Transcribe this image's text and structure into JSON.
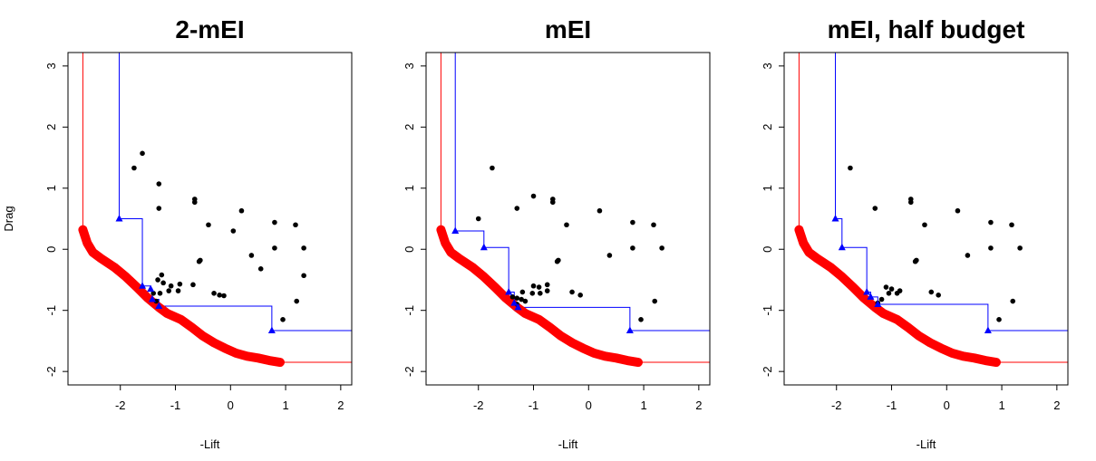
{
  "chart_data": [
    {
      "type": "scatter",
      "title": "2-mEI",
      "xlabel": "-Lift",
      "ylabel": "Drag",
      "xlim": [
        -2.95,
        2.2
      ],
      "ylim": [
        -2.22,
        3.22
      ],
      "xticks": [
        -2,
        -1,
        0,
        1,
        2
      ],
      "yticks": [
        -2,
        -1,
        0,
        1,
        2,
        3
      ],
      "colors": {
        "front": "#ff0000",
        "estimate": "#0000ff",
        "points": "#000000"
      },
      "series": [
        {
          "values": [
            [
              -1.75,
              1.33
            ],
            [
              -1.6,
              1.57
            ],
            [
              -1.3,
              1.07
            ],
            [
              -1.3,
              0.67
            ],
            [
              -0.65,
              0.82
            ],
            [
              -0.65,
              0.77
            ],
            [
              -0.4,
              0.4
            ],
            [
              0.2,
              0.63
            ],
            [
              -0.55,
              -0.18
            ],
            [
              -0.57,
              -0.2
            ],
            [
              0.05,
              0.3
            ],
            [
              0.8,
              0.44
            ],
            [
              1.18,
              0.4
            ],
            [
              1.33,
              0.02
            ],
            [
              0.8,
              0.02
            ],
            [
              0.38,
              -0.1
            ],
            [
              0.55,
              -0.32
            ],
            [
              1.33,
              -0.43
            ],
            [
              1.2,
              -0.85
            ],
            [
              0.95,
              -1.15
            ],
            [
              -1.25,
              -0.42
            ],
            [
              -1.32,
              -0.5
            ],
            [
              -1.22,
              -0.55
            ],
            [
              -1.08,
              -0.6
            ],
            [
              -0.92,
              -0.57
            ],
            [
              -0.68,
              -0.58
            ],
            [
              -1.4,
              -0.72
            ],
            [
              -1.28,
              -0.72
            ],
            [
              -1.12,
              -0.68
            ],
            [
              -0.95,
              -0.68
            ],
            [
              -1.35,
              -0.85
            ],
            [
              -0.3,
              -0.72
            ],
            [
              -0.2,
              -0.75
            ],
            [
              -0.12,
              -0.76
            ]
          ]
        }
      ],
      "estimate_points": [
        [
          -2.02,
          0.5
        ],
        [
          -1.6,
          -0.6
        ],
        [
          -1.45,
          -0.65
        ],
        [
          -1.42,
          -0.82
        ],
        [
          -1.3,
          -0.93
        ],
        [
          0.75,
          -1.33
        ]
      ],
      "front_curve": [
        [
          -2.68,
          0.32
        ],
        [
          -2.6,
          0.1
        ],
        [
          -2.5,
          -0.05
        ],
        [
          -2.35,
          -0.15
        ],
        [
          -2.1,
          -0.3
        ],
        [
          -1.9,
          -0.45
        ],
        [
          -1.7,
          -0.62
        ],
        [
          -1.5,
          -0.8
        ],
        [
          -1.3,
          -0.95
        ],
        [
          -1.15,
          -1.05
        ],
        [
          -0.9,
          -1.15
        ],
        [
          -0.7,
          -1.28
        ],
        [
          -0.5,
          -1.42
        ],
        [
          -0.3,
          -1.53
        ],
        [
          -0.1,
          -1.62
        ],
        [
          0.1,
          -1.7
        ],
        [
          0.3,
          -1.75
        ],
        [
          0.5,
          -1.78
        ],
        [
          0.7,
          -1.82
        ],
        [
          0.9,
          -1.85
        ]
      ]
    },
    {
      "type": "scatter",
      "title": "mEI",
      "xlabel": "-Lift",
      "ylabel": "",
      "xlim": [
        -2.95,
        2.2
      ],
      "ylim": [
        -2.22,
        3.22
      ],
      "xticks": [
        -2,
        -1,
        0,
        1,
        2
      ],
      "yticks": [
        -2,
        -1,
        0,
        1,
        2,
        3
      ],
      "colors": {
        "front": "#ff0000",
        "estimate": "#0000ff",
        "points": "#000000"
      },
      "series": [
        {
          "values": [
            [
              -1.75,
              1.33
            ],
            [
              -1.0,
              0.87
            ],
            [
              -0.65,
              0.82
            ],
            [
              -0.65,
              0.77
            ],
            [
              -1.3,
              0.67
            ],
            [
              0.2,
              0.63
            ],
            [
              -2.0,
              0.5
            ],
            [
              -0.4,
              0.4
            ],
            [
              0.8,
              0.44
            ],
            [
              1.18,
              0.4
            ],
            [
              -0.55,
              -0.18
            ],
            [
              -0.57,
              -0.2
            ],
            [
              0.38,
              -0.1
            ],
            [
              0.8,
              0.02
            ],
            [
              1.33,
              0.02
            ],
            [
              1.2,
              -0.85
            ],
            [
              0.95,
              -1.15
            ],
            [
              -1.0,
              -0.6
            ],
            [
              -0.9,
              -0.62
            ],
            [
              -0.75,
              -0.58
            ],
            [
              -1.2,
              -0.7
            ],
            [
              -1.02,
              -0.72
            ],
            [
              -0.88,
              -0.72
            ],
            [
              -0.75,
              -0.68
            ],
            [
              -1.38,
              -0.78
            ],
            [
              -1.3,
              -0.8
            ],
            [
              -1.22,
              -0.82
            ],
            [
              -1.15,
              -0.85
            ],
            [
              -1.3,
              -0.9
            ],
            [
              -0.3,
              -0.7
            ],
            [
              -0.15,
              -0.75
            ]
          ]
        }
      ],
      "estimate_points": [
        [
          -2.42,
          0.3
        ],
        [
          -1.9,
          0.03
        ],
        [
          -1.45,
          -0.7
        ],
        [
          -1.35,
          -0.88
        ],
        [
          -1.28,
          -0.95
        ],
        [
          0.75,
          -1.33
        ]
      ],
      "front_curve": [
        [
          -2.68,
          0.32
        ],
        [
          -2.6,
          0.1
        ],
        [
          -2.5,
          -0.05
        ],
        [
          -2.35,
          -0.15
        ],
        [
          -2.1,
          -0.3
        ],
        [
          -1.9,
          -0.45
        ],
        [
          -1.7,
          -0.62
        ],
        [
          -1.5,
          -0.8
        ],
        [
          -1.3,
          -0.95
        ],
        [
          -1.15,
          -1.05
        ],
        [
          -0.9,
          -1.15
        ],
        [
          -0.7,
          -1.28
        ],
        [
          -0.5,
          -1.42
        ],
        [
          -0.3,
          -1.53
        ],
        [
          -0.1,
          -1.62
        ],
        [
          0.1,
          -1.7
        ],
        [
          0.3,
          -1.75
        ],
        [
          0.5,
          -1.78
        ],
        [
          0.7,
          -1.82
        ],
        [
          0.9,
          -1.85
        ]
      ]
    },
    {
      "type": "scatter",
      "title": "mEI, half budget",
      "xlabel": "-Lift",
      "ylabel": "",
      "xlim": [
        -2.95,
        2.2
      ],
      "ylim": [
        -2.22,
        3.22
      ],
      "xticks": [
        -2,
        -1,
        0,
        1,
        2
      ],
      "yticks": [
        -2,
        -1,
        0,
        1,
        2,
        3
      ],
      "colors": {
        "front": "#ff0000",
        "estimate": "#0000ff",
        "points": "#000000"
      },
      "series": [
        {
          "values": [
            [
              -1.75,
              1.33
            ],
            [
              -0.65,
              0.82
            ],
            [
              -0.65,
              0.77
            ],
            [
              -1.3,
              0.67
            ],
            [
              0.2,
              0.63
            ],
            [
              -0.4,
              0.4
            ],
            [
              0.8,
              0.44
            ],
            [
              1.18,
              0.4
            ],
            [
              -0.55,
              -0.18
            ],
            [
              -0.57,
              -0.2
            ],
            [
              0.38,
              -0.1
            ],
            [
              0.8,
              0.02
            ],
            [
              1.33,
              0.02
            ],
            [
              1.2,
              -0.85
            ],
            [
              0.95,
              -1.15
            ],
            [
              -1.1,
              -0.62
            ],
            [
              -1.0,
              -0.65
            ],
            [
              -1.05,
              -0.72
            ],
            [
              -0.9,
              -0.72
            ],
            [
              -0.85,
              -0.68
            ],
            [
              -0.28,
              -0.7
            ],
            [
              -0.15,
              -0.75
            ],
            [
              -1.18,
              -0.82
            ],
            [
              -1.25,
              -0.88
            ]
          ]
        }
      ],
      "estimate_points": [
        [
          -2.02,
          0.5
        ],
        [
          -1.9,
          0.03
        ],
        [
          -1.45,
          -0.7
        ],
        [
          -1.38,
          -0.78
        ],
        [
          -1.25,
          -0.9
        ],
        [
          0.75,
          -1.33
        ]
      ],
      "front_curve": [
        [
          -2.68,
          0.32
        ],
        [
          -2.6,
          0.1
        ],
        [
          -2.5,
          -0.05
        ],
        [
          -2.35,
          -0.15
        ],
        [
          -2.1,
          -0.3
        ],
        [
          -1.9,
          -0.45
        ],
        [
          -1.7,
          -0.62
        ],
        [
          -1.5,
          -0.8
        ],
        [
          -1.3,
          -0.95
        ],
        [
          -1.15,
          -1.05
        ],
        [
          -0.9,
          -1.15
        ],
        [
          -0.7,
          -1.28
        ],
        [
          -0.5,
          -1.42
        ],
        [
          -0.3,
          -1.53
        ],
        [
          -0.1,
          -1.62
        ],
        [
          0.1,
          -1.7
        ],
        [
          0.3,
          -1.75
        ],
        [
          0.5,
          -1.78
        ],
        [
          0.7,
          -1.82
        ],
        [
          0.9,
          -1.85
        ]
      ]
    }
  ]
}
